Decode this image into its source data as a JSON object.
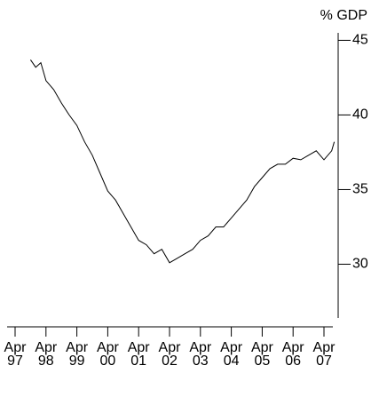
{
  "chart_data": {
    "type": "line",
    "ylabel": "% GDP",
    "x": [
      "1997-10",
      "1997-12",
      "1998-02",
      "1998-04",
      "1998-07",
      "1998-10",
      "1999-01",
      "1999-04",
      "1999-07",
      "1999-10",
      "2000-01",
      "2000-04",
      "2000-07",
      "2000-10",
      "2001-01",
      "2001-04",
      "2001-07",
      "2001-10",
      "2002-01",
      "2002-04",
      "2002-07",
      "2002-10",
      "2003-01",
      "2003-04",
      "2003-07",
      "2003-10",
      "2004-01",
      "2004-04",
      "2004-07",
      "2004-10",
      "2005-01",
      "2005-04",
      "2005-07",
      "2005-10",
      "2006-01",
      "2006-04",
      "2006-07",
      "2006-10",
      "2007-01",
      "2007-04",
      "2007-07",
      "2007-08"
    ],
    "series": [
      {
        "name": "% GDP",
        "color": "#000000",
        "values": [
          43.7,
          43.2,
          43.5,
          42.3,
          41.7,
          40.8,
          40.0,
          39.3,
          38.2,
          37.3,
          36.1,
          34.9,
          34.3,
          33.4,
          32.5,
          31.6,
          31.3,
          30.7,
          31.0,
          30.1,
          30.4,
          30.7,
          31.0,
          31.6,
          31.9,
          32.5,
          32.5,
          33.1,
          33.7,
          34.3,
          35.2,
          35.8,
          36.4,
          36.7,
          36.7,
          37.1,
          37.0,
          37.3,
          37.6,
          37.0,
          37.6,
          38.2
        ]
      }
    ],
    "xticks": [
      {
        "value": "1997-04",
        "label": "Apr 97"
      },
      {
        "value": "1998-04",
        "label": "Apr 98"
      },
      {
        "value": "1999-04",
        "label": "Apr 99"
      },
      {
        "value": "2000-04",
        "label": "Apr 00"
      },
      {
        "value": "2001-04",
        "label": "Apr 01"
      },
      {
        "value": "2002-04",
        "label": "Apr 02"
      },
      {
        "value": "2003-04",
        "label": "Apr 03"
      },
      {
        "value": "2004-04",
        "label": "Apr 04"
      },
      {
        "value": "2005-04",
        "label": "Apr 05"
      },
      {
        "value": "2006-04",
        "label": "Apr 06"
      },
      {
        "value": "2007-04",
        "label": "Apr 07"
      }
    ],
    "ylim": [
      26.4,
      45.5
    ],
    "yticks": [
      30,
      35,
      40,
      45
    ],
    "yaxis_side": "right"
  }
}
